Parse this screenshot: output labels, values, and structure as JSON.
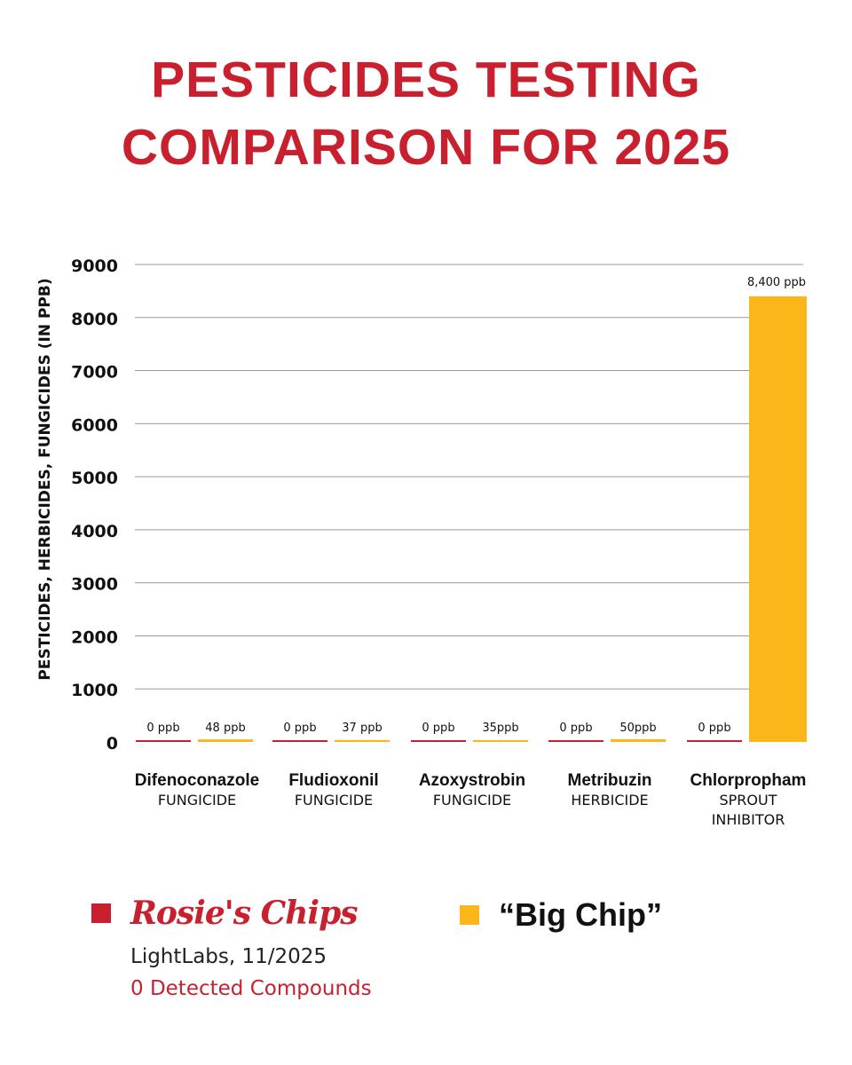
{
  "title": "PESTICIDES TESTING COMPARISON FOR 2025",
  "colors": {
    "brand_red": "#c8202f",
    "big_chip_yellow": "#fbb61a",
    "grid": "#9a9a9a"
  },
  "chart_data": {
    "type": "bar",
    "title": "PESTICIDES TESTING COMPARISON FOR 2025",
    "ylabel": "PESTICIDES, HERBICIDES, FUNGICIDES (IN PPB)",
    "xlabel": "",
    "ylim": [
      0,
      9000
    ],
    "yticks": [
      0,
      1000,
      2000,
      3000,
      4000,
      5000,
      6000,
      7000,
      8000,
      9000
    ],
    "grid": true,
    "legend_placement": "bottom",
    "categories": [
      {
        "name": "Difenoconazole",
        "type": [
          "FUNGICIDE"
        ]
      },
      {
        "name": "Fludioxonil",
        "type": [
          "FUNGICIDE"
        ]
      },
      {
        "name": "Azoxystrobin",
        "type": [
          "FUNGICIDE"
        ]
      },
      {
        "name": "Metribuzin",
        "type": [
          "HERBICIDE"
        ]
      },
      {
        "name": "Chlorpropham",
        "type": [
          "SPROUT",
          "INHIBITOR"
        ]
      }
    ],
    "series": [
      {
        "name": "Rosie's Chips",
        "color": "#c8202f",
        "values": [
          0,
          0,
          0,
          0,
          0
        ],
        "data_labels": [
          "0 ppb",
          "0 ppb",
          "0 ppb",
          "0 ppb",
          "0 ppb"
        ]
      },
      {
        "name": "“Big Chip”",
        "color": "#fbb61a",
        "values": [
          48,
          37,
          35,
          50,
          8400
        ],
        "data_labels": [
          "48 ppb",
          "37 ppb",
          "35ppb",
          "50ppb",
          "8,400 ppb"
        ]
      }
    ]
  },
  "legend": {
    "rosies_label": "Rosie's Chips",
    "rosies_source": "LightLabs, 11/2025",
    "rosies_note": "0 Detected Compounds",
    "bigchip_label": "“Big Chip”"
  }
}
